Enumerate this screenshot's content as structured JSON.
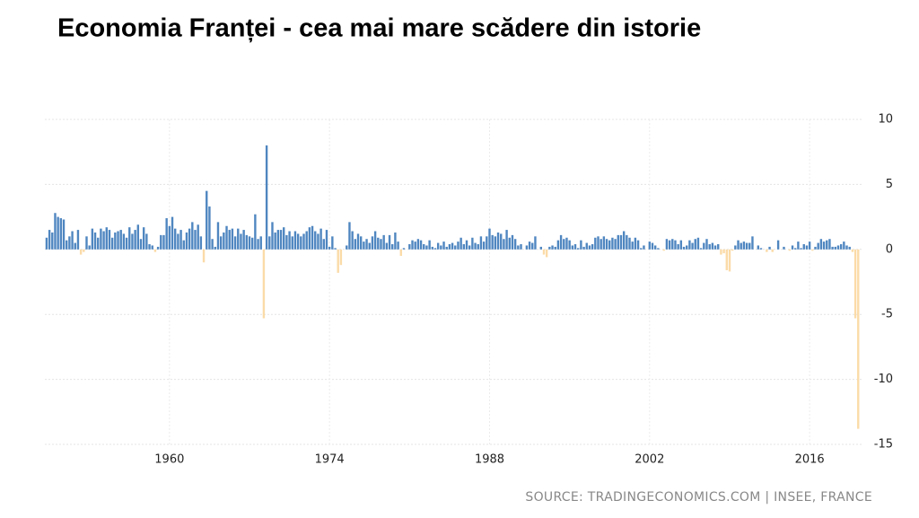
{
  "chart_data": {
    "type": "bar",
    "title": "Economia Franței - cea mai mare scădere din istorie",
    "source": "SOURCE: TRADINGECONOMICS.COM | INSEE, FRANCE",
    "color": "#4f86c0",
    "negative_color": "#fbdba8",
    "xlim": [
      1949.1,
      2020.7
    ],
    "xticks": [
      1960,
      1974,
      1988,
      2002,
      2016
    ],
    "ylim": [
      -15,
      10
    ],
    "yticks": [
      -15,
      -10,
      -5,
      0,
      5,
      10
    ],
    "grid": true,
    "x": [
      1949.25,
      1949.5,
      1949.75,
      1950,
      1950.25,
      1950.5,
      1950.75,
      1951,
      1951.25,
      1951.5,
      1951.75,
      1952,
      1952.25,
      1952.5,
      1952.75,
      1953,
      1953.25,
      1953.5,
      1953.75,
      1954,
      1954.25,
      1954.5,
      1954.75,
      1955,
      1955.25,
      1955.5,
      1955.75,
      1956,
      1956.25,
      1956.5,
      1956.75,
      1957,
      1957.25,
      1957.5,
      1957.75,
      1958,
      1958.25,
      1958.5,
      1958.75,
      1959,
      1959.25,
      1959.5,
      1959.75,
      1960,
      1960.25,
      1960.5,
      1960.75,
      1961,
      1961.25,
      1961.5,
      1961.75,
      1962,
      1962.25,
      1962.5,
      1962.75,
      1963,
      1963.25,
      1963.5,
      1963.75,
      1964,
      1964.25,
      1964.5,
      1964.75,
      1965,
      1965.25,
      1965.5,
      1965.75,
      1966,
      1966.25,
      1966.5,
      1966.75,
      1967,
      1967.25,
      1967.5,
      1967.75,
      1968,
      1968.25,
      1968.5,
      1968.75,
      1969,
      1969.25,
      1969.5,
      1969.75,
      1970,
      1970.25,
      1970.5,
      1970.75,
      1971,
      1971.25,
      1971.5,
      1971.75,
      1972,
      1972.25,
      1972.5,
      1972.75,
      1973,
      1973.25,
      1973.5,
      1973.75,
      1974,
      1974.25,
      1974.5,
      1974.75,
      1975,
      1975.25,
      1975.5,
      1975.75,
      1976,
      1976.25,
      1976.5,
      1976.75,
      1977,
      1977.25,
      1977.5,
      1977.75,
      1978,
      1978.25,
      1978.5,
      1978.75,
      1979,
      1979.25,
      1979.5,
      1979.75,
      1980,
      1980.25,
      1980.5,
      1980.75,
      1981,
      1981.25,
      1981.5,
      1981.75,
      1982,
      1982.25,
      1982.5,
      1982.75,
      1983,
      1983.25,
      1983.5,
      1983.75,
      1984,
      1984.25,
      1984.5,
      1984.75,
      1985,
      1985.25,
      1985.5,
      1985.75,
      1986,
      1986.25,
      1986.5,
      1986.75,
      1987,
      1987.25,
      1987.5,
      1987.75,
      1988,
      1988.25,
      1988.5,
      1988.75,
      1989,
      1989.25,
      1989.5,
      1989.75,
      1990,
      1990.25,
      1990.5,
      1990.75,
      1991,
      1991.25,
      1991.5,
      1991.75,
      1992,
      1992.25,
      1992.5,
      1992.75,
      1993,
      1993.25,
      1993.5,
      1993.75,
      1994,
      1994.25,
      1994.5,
      1994.75,
      1995,
      1995.25,
      1995.5,
      1995.75,
      1996,
      1996.25,
      1996.5,
      1996.75,
      1997,
      1997.25,
      1997.5,
      1997.75,
      1998,
      1998.25,
      1998.5,
      1998.75,
      1999,
      1999.25,
      1999.5,
      1999.75,
      2000,
      2000.25,
      2000.5,
      2000.75,
      2001,
      2001.25,
      2001.5,
      2001.75,
      2002,
      2002.25,
      2002.5,
      2002.75,
      2003,
      2003.25,
      2003.5,
      2003.75,
      2004,
      2004.25,
      2004.5,
      2004.75,
      2005,
      2005.25,
      2005.5,
      2005.75,
      2006,
      2006.25,
      2006.5,
      2006.75,
      2007,
      2007.25,
      2007.5,
      2007.75,
      2008,
      2008.25,
      2008.5,
      2008.75,
      2009,
      2009.25,
      2009.5,
      2009.75,
      2010,
      2010.25,
      2010.5,
      2010.75,
      2011,
      2011.25,
      2011.5,
      2011.75,
      2012,
      2012.25,
      2012.5,
      2012.75,
      2013,
      2013.25,
      2013.5,
      2013.75,
      2014,
      2014.25,
      2014.5,
      2014.75,
      2015,
      2015.25,
      2015.5,
      2015.75,
      2016,
      2016.25,
      2016.5,
      2016.75,
      2017,
      2017.25,
      2017.5,
      2017.75,
      2018,
      2018.25,
      2018.5,
      2018.75,
      2019,
      2019.25,
      2019.5,
      2019.75,
      2020,
      2020.25
    ],
    "values": [
      0.9,
      1.5,
      1.3,
      2.8,
      2.5,
      2.4,
      2.3,
      0.7,
      1.0,
      1.4,
      0.5,
      1.5,
      -0.4,
      -0.2,
      1.0,
      0.3,
      1.6,
      1.3,
      0.9,
      1.6,
      1.4,
      1.7,
      1.5,
      0.9,
      1.3,
      1.4,
      1.5,
      1.2,
      0.9,
      1.7,
      1.2,
      1.5,
      1.9,
      0.8,
      1.7,
      1.2,
      0.4,
      0.3,
      -0.2,
      0.2,
      1.1,
      1.1,
      2.4,
      1.8,
      2.5,
      1.6,
      1.2,
      1.5,
      0.7,
      1.3,
      1.6,
      2.1,
      1.5,
      1.9,
      1.0,
      -1.0,
      4.5,
      3.3,
      0.8,
      0.2,
      2.1,
      1.0,
      1.3,
      1.8,
      1.5,
      1.6,
      1.0,
      1.6,
      1.2,
      1.5,
      1.1,
      1.0,
      0.9,
      2.7,
      0.8,
      1.0,
      -5.3,
      8.0,
      1.0,
      2.1,
      1.3,
      1.5,
      1.5,
      1.7,
      1.1,
      1.4,
      1.0,
      1.4,
      1.2,
      1.0,
      1.2,
      1.4,
      1.7,
      1.8,
      1.4,
      1.2,
      1.6,
      0.8,
      1.5,
      0.2,
      1.0,
      0.1,
      -1.8,
      -1.2,
      0.0,
      0.3,
      2.1,
      1.4,
      0.8,
      1.2,
      1.0,
      0.6,
      0.8,
      0.5,
      1.0,
      1.4,
      0.9,
      0.8,
      1.1,
      0.5,
      1.1,
      0.4,
      1.3,
      0.6,
      -0.5,
      0.1,
      0.0,
      0.4,
      0.7,
      0.6,
      0.8,
      0.7,
      0.4,
      0.3,
      0.7,
      0.2,
      0.1,
      0.5,
      0.3,
      0.6,
      0.2,
      0.4,
      0.5,
      0.3,
      0.6,
      0.9,
      0.4,
      0.7,
      0.3,
      0.9,
      0.5,
      0.4,
      1.0,
      0.6,
      1.0,
      1.6,
      1.1,
      1.0,
      1.3,
      1.2,
      0.8,
      1.5,
      0.9,
      1.1,
      0.8,
      0.3,
      0.4,
      0.0,
      0.3,
      0.6,
      0.5,
      1.0,
      0.0,
      0.2,
      -0.4,
      -0.6,
      0.2,
      0.3,
      0.2,
      0.7,
      1.1,
      0.8,
      0.9,
      0.7,
      0.3,
      0.4,
      0.1,
      0.7,
      0.2,
      0.5,
      0.3,
      0.4,
      0.9,
      1.0,
      0.8,
      1.0,
      0.8,
      0.7,
      0.9,
      0.8,
      1.1,
      1.1,
      1.4,
      1.1,
      0.9,
      0.6,
      0.9,
      0.7,
      0.1,
      0.3,
      0.0,
      0.6,
      0.5,
      0.3,
      0.1,
      0.0,
      -0.1,
      0.8,
      0.7,
      0.8,
      0.7,
      0.4,
      0.7,
      0.2,
      0.3,
      0.7,
      0.5,
      0.8,
      0.9,
      0.1,
      0.5,
      0.8,
      0.4,
      0.5,
      0.3,
      0.4,
      -0.4,
      -0.3,
      -1.6,
      -1.7,
      -0.1,
      0.3,
      0.7,
      0.5,
      0.6,
      0.5,
      0.5,
      1.0,
      0.0,
      0.3,
      0.1,
      0.0,
      -0.2,
      0.2,
      -0.2,
      0.0,
      0.7,
      0.0,
      0.2,
      0.0,
      -0.1,
      0.3,
      0.1,
      0.6,
      0.1,
      0.4,
      0.3,
      0.6,
      -0.1,
      0.2,
      0.5,
      0.8,
      0.6,
      0.7,
      0.8,
      0.2,
      0.2,
      0.3,
      0.4,
      0.6,
      0.3,
      0.2,
      -0.2,
      -5.3,
      -13.8
    ]
  }
}
